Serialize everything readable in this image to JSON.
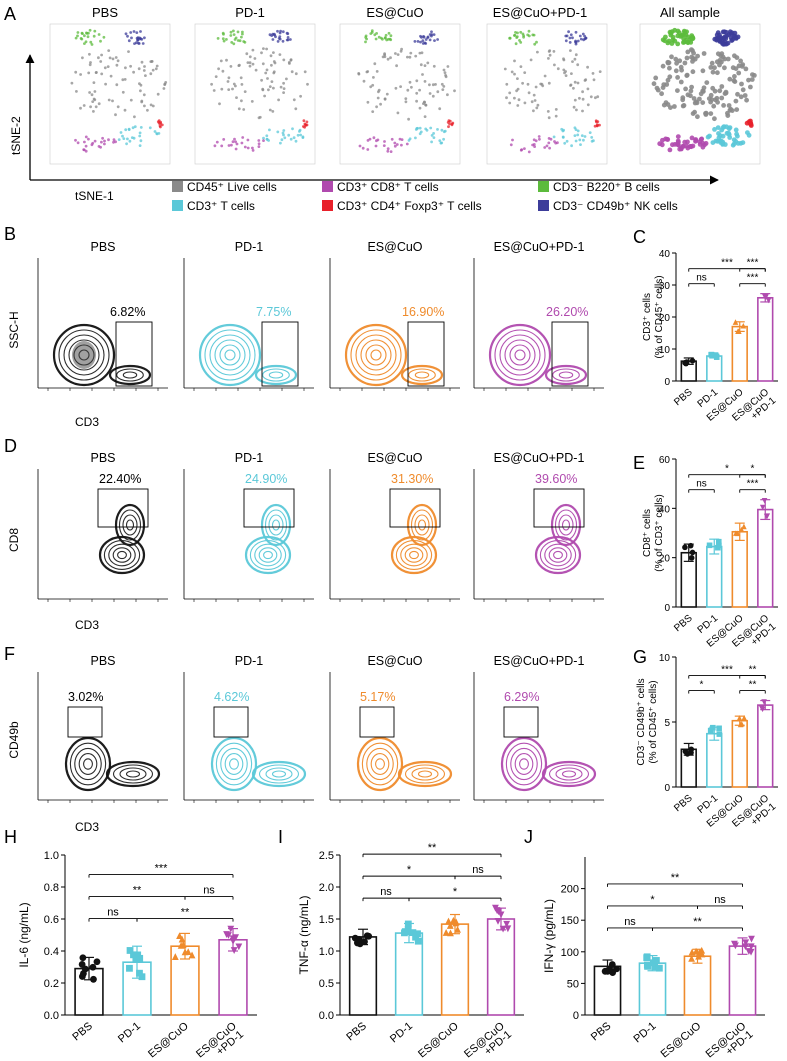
{
  "colors": {
    "PBS": "#111111",
    "PD-1": "#5bc8d8",
    "ES@CuO": "#ef8b2c",
    "ES@CuO+PD-1": "#b04aae",
    "live": "#8a8a8a",
    "tcell": "#5bc8d8",
    "cd8": "#b04aae",
    "treg": "#e8202a",
    "bcell": "#5cbb3c",
    "nk": "#3c3c9a"
  },
  "panel_a": {
    "letter": "A",
    "groups": [
      "PBS",
      "PD-1",
      "ES@CuO",
      "ES@CuO+PD-1",
      "All sample"
    ],
    "xlabel": "tSNE-1",
    "ylabel": "tSNE-2",
    "legend": [
      {
        "label": "CD45⁺ Live cells",
        "color": "#8a8a8a"
      },
      {
        "label": "CD3⁺ T cells",
        "color": "#5bc8d8"
      },
      {
        "label": "CD3⁺ CD8⁺ T cells",
        "color": "#b04aae"
      },
      {
        "label": "CD3⁺ CD4⁺  Foxp3⁺ T cells",
        "color": "#e8202a"
      },
      {
        "label": "CD3⁻ B220⁺ B cells",
        "color": "#5cbb3c"
      },
      {
        "label": "CD3⁻ CD49b⁺ NK cells",
        "color": "#3c3c9a"
      }
    ]
  },
  "panel_b": {
    "letter": "B",
    "groups": [
      "PBS",
      "PD-1",
      "ES@CuO",
      "ES@CuO+PD-1"
    ],
    "percents": [
      "6.82%",
      "7.75%",
      "16.90%",
      "26.20%"
    ],
    "xlabel": "CD3",
    "ylabel": "SSC-H"
  },
  "panel_d": {
    "letter": "D",
    "groups": [
      "PBS",
      "PD-1",
      "ES@CuO",
      "ES@CuO+PD-1"
    ],
    "percents": [
      "22.40%",
      "24.90%",
      "31.30%",
      "39.60%"
    ],
    "xlabel": "CD3",
    "ylabel": "CD8"
  },
  "panel_f": {
    "letter": "F",
    "groups": [
      "PBS",
      "PD-1",
      "ES@CuO",
      "ES@CuO+PD-1"
    ],
    "percents": [
      "3.02%",
      "4.62%",
      "5.17%",
      "6.29%"
    ],
    "xlabel": "CD3",
    "ylabel": "CD49b"
  },
  "chart_data": [
    {
      "id": "C",
      "type": "bar",
      "letter": "C",
      "categories": [
        "PBS",
        "PD-1",
        "ES@CuO",
        "ES@CuO\n+PD-1"
      ],
      "values": [
        6.2,
        7.8,
        17.0,
        26.0
      ],
      "errors": [
        1.0,
        0.6,
        1.5,
        1.3
      ],
      "ylabel_lines": [
        "CD3⁺ cells",
        "(% of CD45⁺ cells)"
      ],
      "ylim": [
        0,
        40
      ],
      "yticks": [
        0,
        10,
        20,
        30,
        40
      ],
      "sig": [
        {
          "a": 0,
          "b": 3,
          "label": "***",
          "level": 2
        },
        {
          "a": 2,
          "b": 3,
          "label": "***",
          "level": 2
        },
        {
          "a": 0,
          "b": 1,
          "label": "ns",
          "level": 1
        },
        {
          "a": 2,
          "b": 3,
          "label": "***",
          "level": 1
        }
      ]
    },
    {
      "id": "E",
      "type": "bar",
      "letter": "E",
      "categories": [
        "PBS",
        "PD-1",
        "ES@CuO",
        "ES@CuO\n+PD-1"
      ],
      "values": [
        22.0,
        24.5,
        30.5,
        39.5
      ],
      "errors": [
        3.5,
        3.0,
        3.5,
        4.0
      ],
      "ylabel_lines": [
        "CD8⁺ cells",
        "(% of CD3⁺ cells)"
      ],
      "ylim": [
        0,
        60
      ],
      "yticks": [
        0,
        20,
        40,
        60
      ],
      "sig": [
        {
          "a": 0,
          "b": 3,
          "label": "*",
          "level": 2
        },
        {
          "a": 2,
          "b": 3,
          "label": "*",
          "level": 2
        },
        {
          "a": 0,
          "b": 1,
          "label": "ns",
          "level": 1
        },
        {
          "a": 2,
          "b": 3,
          "label": "***",
          "level": 1
        }
      ]
    },
    {
      "id": "G",
      "type": "bar",
      "letter": "G",
      "categories": [
        "PBS",
        "PD-1",
        "ES@CuO",
        "ES@CuO\n+PD-1"
      ],
      "values": [
        2.9,
        4.1,
        5.1,
        6.3
      ],
      "errors": [
        0.45,
        0.5,
        0.35,
        0.35
      ],
      "ylabel_lines": [
        "CD3⁻ CD49b⁺ cells",
        "(% of CD45⁺ cells)"
      ],
      "ylim": [
        0,
        10
      ],
      "yticks": [
        0,
        5,
        10
      ],
      "sig": [
        {
          "a": 0,
          "b": 3,
          "label": "***",
          "level": 2
        },
        {
          "a": 2,
          "b": 3,
          "label": "**",
          "level": 2
        },
        {
          "a": 0,
          "b": 1,
          "label": "*",
          "level": 1
        },
        {
          "a": 2,
          "b": 3,
          "label": "**",
          "level": 1
        }
      ]
    },
    {
      "id": "H",
      "type": "bar",
      "letter": "H",
      "categories": [
        "PBS",
        "PD-1",
        "ES@CuO",
        "ES@CuO\n+PD-1"
      ],
      "values": [
        0.29,
        0.33,
        0.43,
        0.47
      ],
      "errors": [
        0.07,
        0.1,
        0.08,
        0.07
      ],
      "ylabel_lines": [
        "IL-6 (ng/mL)"
      ],
      "ylim": [
        0,
        1.0
      ],
      "yticks": [
        0.0,
        0.2,
        0.4,
        0.6,
        0.8,
        1.0
      ],
      "sig": [
        {
          "a": 0,
          "b": 3,
          "label": "***",
          "level": 3
        },
        {
          "a": 0,
          "b": 2,
          "label": "**",
          "level": 2
        },
        {
          "a": 2,
          "b": 3,
          "label": "ns",
          "level": 2
        },
        {
          "a": 0,
          "b": 1,
          "label": "ns",
          "level": 1
        },
        {
          "a": 1,
          "b": 3,
          "label": "**",
          "level": 1
        }
      ]
    },
    {
      "id": "I",
      "type": "bar",
      "letter": "I",
      "categories": [
        "PBS",
        "PD-1",
        "ES@CuO",
        "ES@CuO\n+PD-1"
      ],
      "values": [
        1.22,
        1.28,
        1.42,
        1.5
      ],
      "errors": [
        0.12,
        0.15,
        0.15,
        0.17
      ],
      "ylabel_lines": [
        "TNF-α (ng/mL)"
      ],
      "ylim": [
        0,
        2.5
      ],
      "yticks": [
        0.0,
        0.5,
        1.0,
        1.5,
        2.0,
        2.5
      ],
      "sig": [
        {
          "a": 0,
          "b": 3,
          "label": "**",
          "level": 3
        },
        {
          "a": 0,
          "b": 2,
          "label": "*",
          "level": 2
        },
        {
          "a": 2,
          "b": 3,
          "label": "ns",
          "level": 2
        },
        {
          "a": 0,
          "b": 1,
          "label": "ns",
          "level": 1
        },
        {
          "a": 1,
          "b": 3,
          "label": "*",
          "level": 1
        }
      ]
    },
    {
      "id": "J",
      "type": "bar",
      "letter": "J",
      "categories": [
        "PBS",
        "PD-1",
        "ES@CuO",
        "ES@CuO\n+PD-1"
      ],
      "values": [
        77,
        82,
        93,
        109
      ],
      "errors": [
        10,
        12,
        11,
        13
      ],
      "ylabel_lines": [
        "IFN-γ (pg/mL)"
      ],
      "ylim": [
        0,
        250
      ],
      "yticks": [
        0,
        50,
        100,
        150,
        200
      ],
      "sig": [
        {
          "a": 0,
          "b": 3,
          "label": "**",
          "level": 3
        },
        {
          "a": 0,
          "b": 2,
          "label": "*",
          "level": 2
        },
        {
          "a": 2,
          "b": 3,
          "label": "ns",
          "level": 2
        },
        {
          "a": 0,
          "b": 1,
          "label": "ns",
          "level": 1
        },
        {
          "a": 1,
          "b": 3,
          "label": "**",
          "level": 1
        }
      ]
    }
  ]
}
